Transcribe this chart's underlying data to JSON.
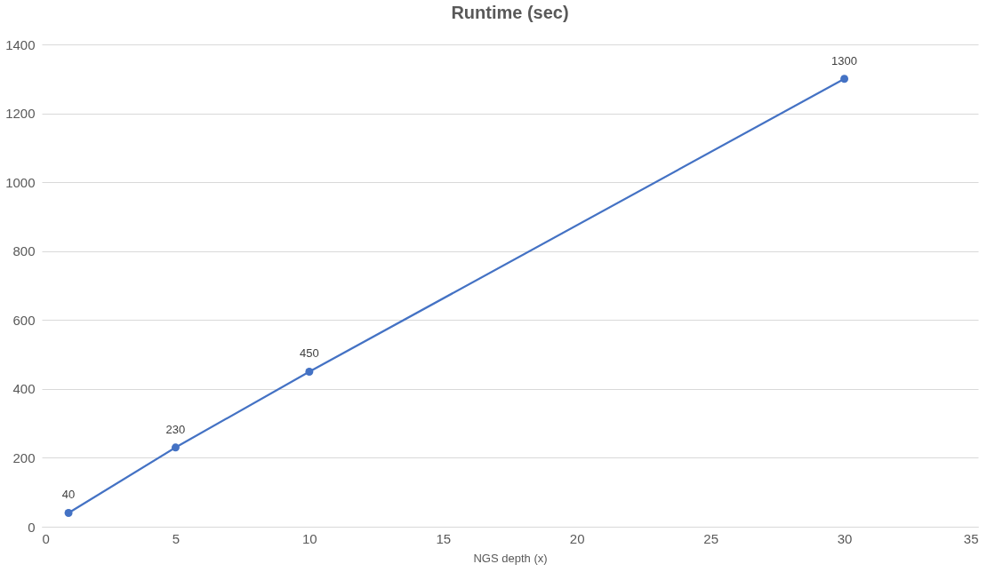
{
  "chart_data": {
    "type": "line",
    "title": "Runtime (sec)",
    "xlabel": "NGS depth (x)",
    "x": [
      1,
      5,
      10,
      30
    ],
    "series": [
      {
        "color": "#4472c4",
        "values": [
          40,
          230,
          450,
          1300
        ]
      }
    ],
    "xlim": [
      0,
      35
    ],
    "xticks": [
      0,
      5,
      10,
      15,
      20,
      25,
      30,
      35
    ],
    "ylim": [
      0,
      1400
    ],
    "yticks": [
      0,
      200,
      400,
      600,
      800,
      1000,
      1200,
      1400
    ],
    "grid": "y",
    "marker": "circle",
    "line_style": "solid",
    "data_labels": true
  }
}
